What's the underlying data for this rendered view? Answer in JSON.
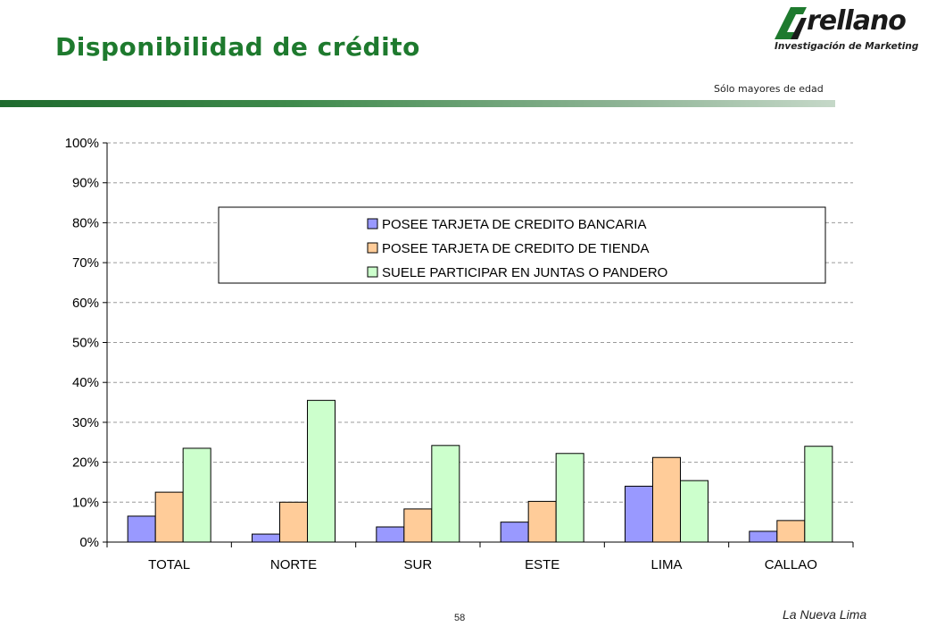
{
  "header": {
    "title": "Disponibilidad de crédito",
    "note": "Sólo mayores de edad"
  },
  "logo": {
    "wordmark": "rellano",
    "tagline": "Investigación de Marketing"
  },
  "footer": {
    "page_number": "58",
    "note": "La Nueva Lima"
  },
  "chart_data": {
    "type": "bar",
    "categories": [
      "TOTAL",
      "NORTE",
      "SUR",
      "ESTE",
      "LIMA",
      "CALLAO"
    ],
    "series": [
      {
        "name": "POSEE TARJETA DE CREDITO BANCARIA",
        "color": "#9999ff",
        "values": [
          6.5,
          2.0,
          3.8,
          5.0,
          14.0,
          2.7
        ]
      },
      {
        "name": "POSEE TARJETA DE CREDITO DE TIENDA",
        "color": "#ffcc99",
        "values": [
          12.5,
          10.0,
          8.3,
          10.2,
          21.2,
          5.4
        ]
      },
      {
        "name": "SUELE PARTICIPAR EN JUNTAS O PANDERO",
        "color": "#ccffcc",
        "values": [
          23.5,
          35.5,
          24.2,
          22.2,
          15.4,
          24.0
        ]
      }
    ],
    "yticks": [
      "0%",
      "10%",
      "20%",
      "30%",
      "40%",
      "50%",
      "60%",
      "70%",
      "80%",
      "90%",
      "100%"
    ],
    "ylim": [
      0,
      100
    ],
    "grid": true,
    "legend_position": "top-center"
  }
}
